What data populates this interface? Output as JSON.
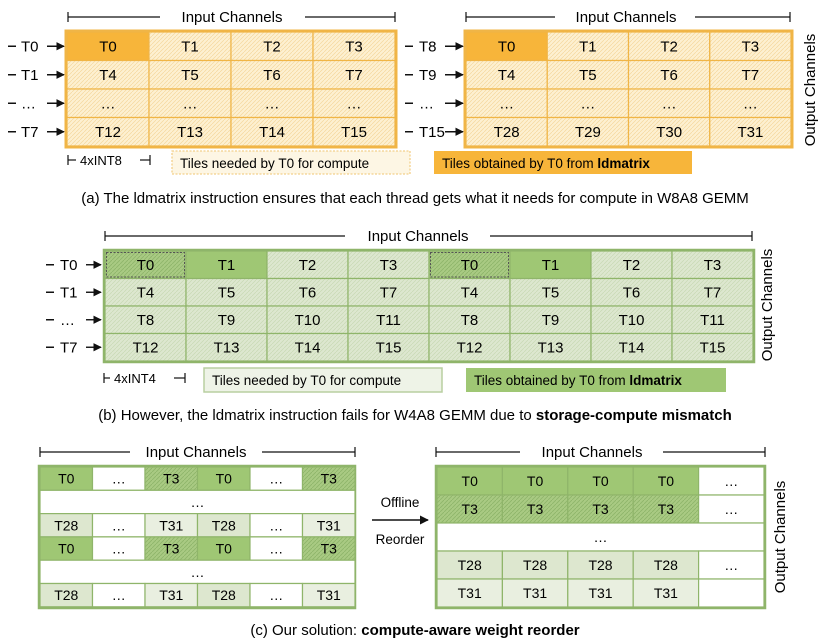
{
  "colors": {
    "orange_fill": "#fdf0d1",
    "orange_dark": "#f7b53a",
    "orange_border": "#f0b546",
    "green_fill": "#dde7cf",
    "green_dark": "#9fc774",
    "green_border": "#8fb56a",
    "green_light": "#e9efe0"
  },
  "panel_a": {
    "header_left": "Input Channels",
    "header_right": "Input Channels",
    "output_label": "Output Channels",
    "row_labels_left": [
      "T0",
      "T1",
      "…",
      "T7"
    ],
    "row_labels_right": [
      "T8",
      "T9",
      "…",
      "T15"
    ],
    "grid_left": [
      [
        "T0",
        "T1",
        "T2",
        "T3"
      ],
      [
        "T4",
        "T5",
        "T6",
        "T7"
      ],
      [
        "…",
        "…",
        "…",
        "…"
      ],
      [
        "T12",
        "T13",
        "T14",
        "T15"
      ]
    ],
    "grid_right": [
      [
        "T0",
        "T1",
        "T2",
        "T3"
      ],
      [
        "T4",
        "T5",
        "T6",
        "T7"
      ],
      [
        "…",
        "…",
        "…",
        "…"
      ],
      [
        "T28",
        "T29",
        "T30",
        "T31"
      ]
    ],
    "unit_label": "4xINT8",
    "legend_needed": "Tiles needed by T0 for compute",
    "legend_obtained_prefix": "Tiles obtained by T0 from ",
    "legend_obtained_bold": "ldmatrix",
    "caption": "(a) The ldmatrix instruction ensures that each thread gets what it needs for compute in W8A8 GEMM"
  },
  "panel_b": {
    "header": "Input Channels",
    "output_label": "Output Channels",
    "row_labels": [
      "T0",
      "T1",
      "…",
      "T7"
    ],
    "grid": [
      [
        "T0",
        "T1",
        "T2",
        "T3",
        "T0",
        "T1",
        "T2",
        "T3"
      ],
      [
        "T4",
        "T5",
        "T6",
        "T7",
        "T4",
        "T5",
        "T6",
        "T7"
      ],
      [
        "T8",
        "T9",
        "T10",
        "T11",
        "T8",
        "T9",
        "T10",
        "T11"
      ],
      [
        "T12",
        "T13",
        "T14",
        "T15",
        "T12",
        "T13",
        "T14",
        "T15"
      ]
    ],
    "unit_label": "4xINT4",
    "legend_needed": "Tiles needed by T0 for compute",
    "legend_obtained_prefix": "Tiles obtained by T0 from ",
    "legend_obtained_bold": "ldmatrix",
    "caption_prefix": "(b) However, the ldmatrix instruction fails for W4A8 GEMM due to ",
    "caption_bold": "storage-compute mismatch"
  },
  "panel_c": {
    "header_left": "Input Channels",
    "header_right": "Input Channels",
    "output_label": "Output Channels",
    "left_rows": [
      [
        "T0",
        "…",
        "T3",
        "T0",
        "…",
        "T3"
      ],
      [
        "…"
      ],
      [
        "T28",
        "…",
        "T31",
        "T28",
        "…",
        "T31"
      ],
      [
        "T0",
        "…",
        "T3",
        "T0",
        "…",
        "T3"
      ],
      [
        "…"
      ],
      [
        "T28",
        "…",
        "T31",
        "T28",
        "…",
        "T31"
      ]
    ],
    "right_rows": [
      [
        "T0",
        "T0",
        "T0",
        "T0",
        "…"
      ],
      [
        "T3",
        "T3",
        "T3",
        "T3",
        "…"
      ],
      [
        "…"
      ],
      [
        "T28",
        "T28",
        "T28",
        "T28",
        "…"
      ],
      [
        "T31",
        "T31",
        "T31",
        "T31",
        ""
      ]
    ],
    "arrow_label_1": "Offline",
    "arrow_label_2": "Reorder",
    "caption_prefix": "(c) Our solution: ",
    "caption_bold": "compute-aware weight reorder"
  }
}
